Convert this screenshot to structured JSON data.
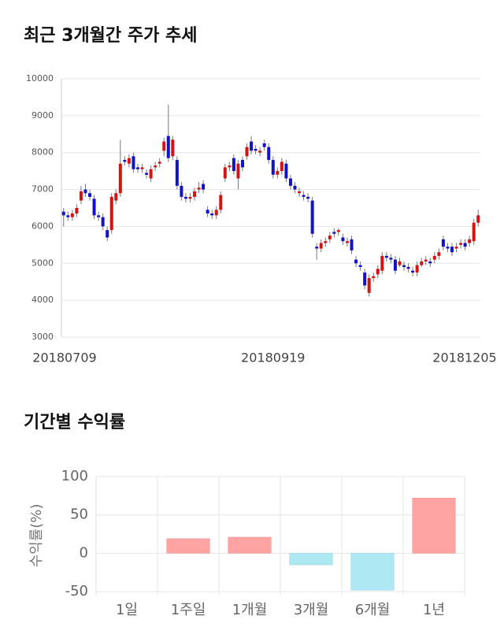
{
  "chart_data": [
    {
      "type": "candlestick",
      "title": "최근 3개월간 주가 추세",
      "x": [
        "20180709",
        null,
        null,
        null,
        null,
        null,
        null,
        null,
        null,
        null,
        null,
        null,
        null,
        null,
        null,
        null,
        null,
        null,
        null,
        null,
        null,
        null,
        null,
        null,
        null,
        null,
        null,
        null,
        null,
        null,
        null,
        null,
        null,
        null,
        null,
        null,
        null,
        null,
        null,
        null,
        null,
        null,
        null,
        null,
        null,
        null,
        null,
        null,
        "20180919",
        null,
        null,
        null,
        null,
        null,
        null,
        null,
        null,
        null,
        null,
        null,
        null,
        null,
        null,
        null,
        null,
        null,
        null,
        null,
        null,
        null,
        null,
        null,
        null,
        null,
        null,
        null,
        null,
        null,
        null,
        null,
        null,
        null,
        null,
        null,
        null,
        null,
        null,
        null,
        null,
        null,
        null,
        null,
        null,
        null,
        null,
        "20181205"
      ],
      "open": [
        6400,
        6300,
        6250,
        6350,
        6700,
        7000,
        6900,
        6750,
        6300,
        6250,
        5900,
        5900,
        6700,
        6900,
        7800,
        7700,
        7900,
        7600,
        7550,
        7450,
        7300,
        7600,
        7700,
        8050,
        8450,
        7900,
        7800,
        7100,
        6800,
        6750,
        6800,
        7000,
        7150,
        6450,
        6350,
        6300,
        6450,
        7300,
        7600,
        7850,
        7300,
        7800,
        7900,
        8300,
        8100,
        8000,
        8250,
        8150,
        7800,
        7400,
        7500,
        7700,
        7300,
        7100,
        6900,
        6850,
        6800,
        6700,
        5450,
        5400,
        5550,
        5650,
        5850,
        5850,
        5700,
        5550,
        5650,
        5100,
        4950,
        4750,
        4200,
        4600,
        4700,
        4800,
        5200,
        5150,
        5100,
        4950,
        4950,
        4900,
        4800,
        4750,
        4950,
        5050,
        5050,
        5100,
        5200,
        5650,
        5450,
        5450,
        5400,
        5500,
        5550,
        5550,
        5600,
        6100
      ],
      "high": [
        6500,
        6400,
        6450,
        6600,
        7100,
        7150,
        7000,
        6850,
        6400,
        6350,
        6000,
        6900,
        7000,
        8350,
        7900,
        7950,
        8000,
        7700,
        7700,
        7550,
        7650,
        7750,
        7850,
        8400,
        9300,
        8450,
        7900,
        7200,
        6900,
        6900,
        7050,
        7200,
        7250,
        6550,
        6450,
        6550,
        6950,
        7700,
        7750,
        7950,
        7800,
        7900,
        8250,
        8450,
        8200,
        8150,
        8350,
        8250,
        7900,
        7600,
        7850,
        7800,
        7400,
        7200,
        7050,
        6950,
        6900,
        6800,
        5550,
        5650,
        5700,
        5850,
        5950,
        5950,
        5800,
        5700,
        5750,
        5200,
        5050,
        4850,
        4700,
        4750,
        4950,
        5300,
        5300,
        5250,
        5200,
        5150,
        5050,
        5000,
        4900,
        5050,
        5150,
        5200,
        5150,
        5300,
        5400,
        5750,
        5550,
        5550,
        5550,
        5650,
        5650,
        5750,
        6200,
        6450
      ],
      "low": [
        6000,
        6150,
        6150,
        6250,
        6600,
        6800,
        6700,
        6200,
        6150,
        5900,
        5600,
        5800,
        6600,
        6800,
        7650,
        7600,
        7450,
        7450,
        7450,
        7300,
        7200,
        7500,
        7600,
        7900,
        7750,
        7800,
        7000,
        6700,
        6650,
        6650,
        6700,
        6900,
        6900,
        6250,
        6200,
        6200,
        6350,
        7200,
        7500,
        7400,
        7000,
        7500,
        7800,
        7950,
        7950,
        7900,
        8050,
        7700,
        7300,
        7300,
        7400,
        7200,
        7000,
        6900,
        6800,
        6700,
        6650,
        5700,
        5100,
        5300,
        5450,
        5550,
        5700,
        5750,
        5500,
        5450,
        5250,
        4900,
        4800,
        4300,
        4100,
        4500,
        4600,
        4700,
        5050,
        5000,
        4700,
        4900,
        4800,
        4750,
        4650,
        4650,
        4900,
        4950,
        4900,
        5000,
        5100,
        5350,
        5300,
        5200,
        5300,
        5400,
        5350,
        5450,
        5500,
        6000
      ],
      "close": [
        6300,
        6250,
        6350,
        6500,
        6950,
        6900,
        6800,
        6300,
        6250,
        6000,
        5700,
        6800,
        6900,
        7700,
        7750,
        7850,
        7550,
        7550,
        7600,
        7400,
        7550,
        7650,
        7750,
        8300,
        7850,
        8350,
        7100,
        6800,
        6750,
        6800,
        6950,
        7050,
        7000,
        6350,
        6300,
        6450,
        6850,
        7600,
        7650,
        7500,
        7700,
        7600,
        8150,
        8050,
        8050,
        8050,
        8150,
        7800,
        7400,
        7500,
        7750,
        7300,
        7100,
        7000,
        6950,
        6800,
        6750,
        5800,
        5400,
        5550,
        5600,
        5750,
        5800,
        5900,
        5600,
        5600,
        5350,
        5000,
        4900,
        4400,
        4600,
        4650,
        4850,
        5200,
        5150,
        5100,
        4800,
        5050,
        4900,
        4850,
        4750,
        4950,
        5050,
        5100,
        5000,
        5200,
        5300,
        5450,
        5400,
        5300,
        5450,
        5550,
        5450,
        5650,
        6100,
        6300
      ],
      "up_color": "#d41414",
      "down_color": "#1212c8",
      "ylim": [
        3000,
        10000
      ],
      "yticks": [
        3000,
        4000,
        5000,
        6000,
        7000,
        8000,
        9000,
        10000
      ],
      "grid": true
    },
    {
      "type": "bar",
      "title": "기간별 수익률",
      "ylabel": "수익률(%)",
      "categories": [
        "1일",
        "1주일",
        "1개월",
        "3개월",
        "6개월",
        "1년"
      ],
      "values": [
        0,
        19,
        21,
        -15,
        -48,
        72
      ],
      "pos_color": "#ffa3a3",
      "neg_color": "#aee8f3",
      "ylim": [
        -55,
        100
      ],
      "yticks": [
        -50,
        0,
        50,
        100
      ],
      "grid": true
    }
  ]
}
